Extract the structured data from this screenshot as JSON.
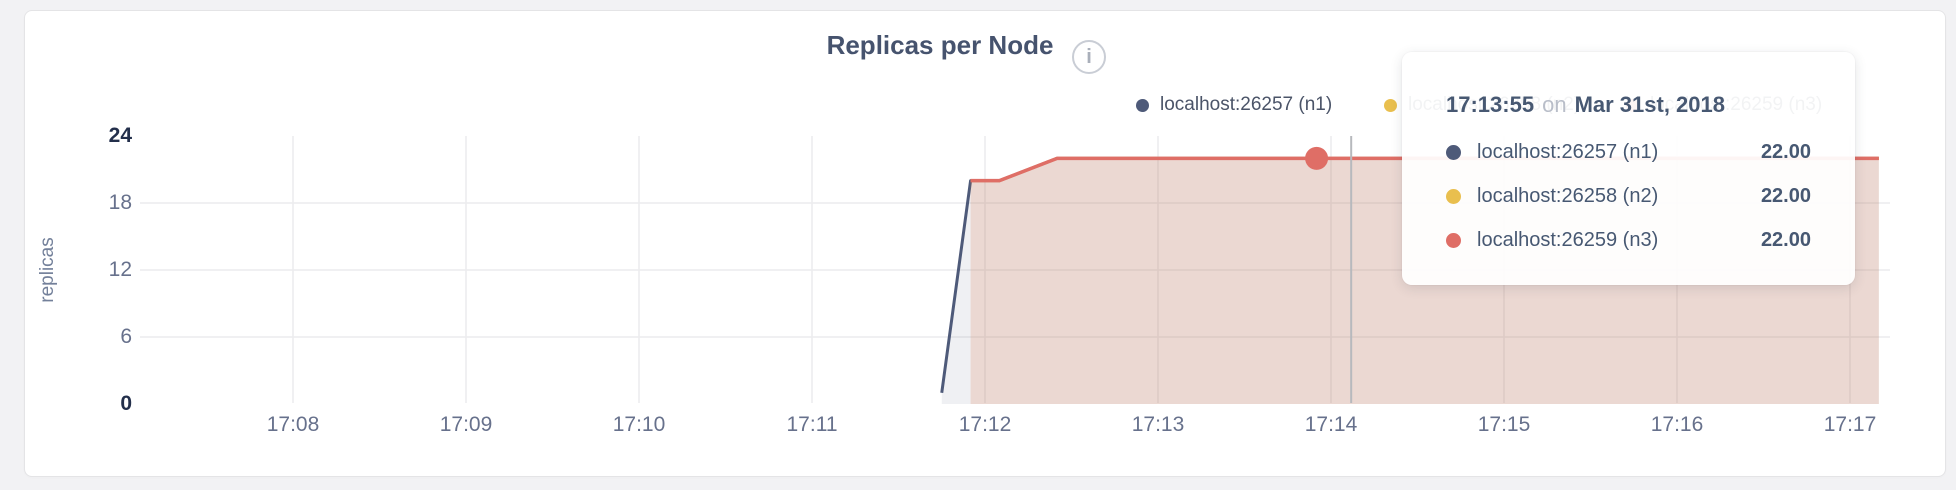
{
  "header": {
    "title": "Replicas per Node",
    "info_glyph": "i"
  },
  "colors": {
    "title_text": "#46536e",
    "axis_text": "#67718c",
    "axis_text_strong": "#232f4b",
    "grid": "#ececee",
    "crosshair": "#b7b9bd",
    "series_n1": "#4e5a79",
    "series_n2": "#e9bf4e",
    "series_n3": "#df6e66",
    "fill_n1": "rgba(78,90,121,0.09)",
    "fill_n2": "rgba(233,191,78,0.08)",
    "fill_n3": "rgba(223,110,102,0.15)",
    "card_bg": "#ffffff",
    "page_bg": "#f2f2f4",
    "tooltip_muted": "#b9bec9"
  },
  "chart_data": {
    "type": "area",
    "title": "Replicas per Node",
    "xlabel": "",
    "ylabel": "replicas",
    "ylim": [
      0,
      24
    ],
    "y_ticks": [
      0,
      6,
      12,
      18,
      24
    ],
    "x_ticks": [
      "17:08",
      "17:09",
      "17:10",
      "17:11",
      "17:12",
      "17:13",
      "17:14",
      "17:15",
      "17:16",
      "17:17"
    ],
    "x_window": [
      "17:06:56",
      "17:17:14"
    ],
    "grid": true,
    "legend_position": "top-right",
    "series": [
      {
        "name": "localhost:26257 (n1)",
        "color": "#4e5a79",
        "points": [
          [
            "17:11:45",
            1
          ],
          [
            "17:11:55",
            20
          ],
          [
            "17:12:05",
            20
          ],
          [
            "17:12:25",
            22
          ],
          [
            "17:17:10",
            22
          ]
        ]
      },
      {
        "name": "localhost:26258 (n2)",
        "color": "#e9bf4e",
        "points": [
          [
            "17:11:55",
            20
          ],
          [
            "17:12:05",
            20
          ],
          [
            "17:12:25",
            22
          ],
          [
            "17:17:10",
            22
          ]
        ]
      },
      {
        "name": "localhost:26259 (n3)",
        "color": "#df6e66",
        "points": [
          [
            "17:11:55",
            20
          ],
          [
            "17:12:05",
            20
          ],
          [
            "17:12:25",
            22
          ],
          [
            "17:17:10",
            22
          ]
        ]
      }
    ],
    "hover": {
      "time": "17:13:55",
      "value": 22,
      "highlight_series": "localhost:26259 (n3)",
      "crosshair_time": "17:14:07"
    }
  },
  "tooltip": {
    "time": "17:13:55",
    "on_word": "on",
    "date": "Mar 31st, 2018",
    "rows": [
      {
        "label": "localhost:26257 (n1)",
        "value": "22.00"
      },
      {
        "label": "localhost:26258 (n2)",
        "value": "22.00"
      },
      {
        "label": "localhost:26259 (n3)",
        "value": "22.00"
      }
    ]
  }
}
